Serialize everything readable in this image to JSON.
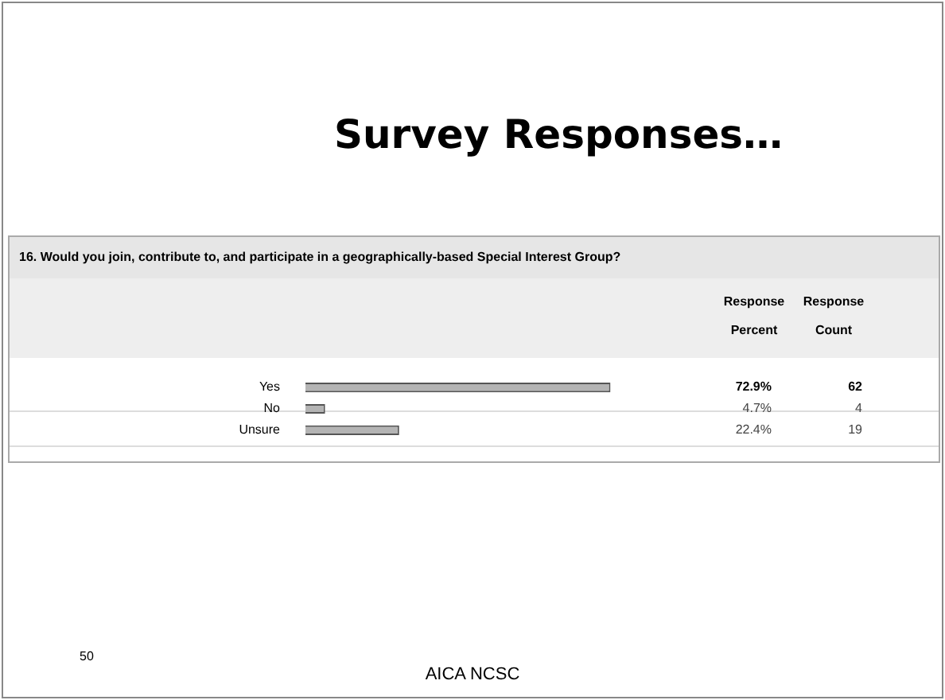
{
  "chart_data": {
    "type": "bar",
    "orientation": "horizontal",
    "title": "Survey Responses…",
    "subtitle": "16. Would you join, contribute to, and participate in a geographically-based Special Interest Group?",
    "categories": [
      "Yes",
      "No",
      "Unsure"
    ],
    "values": [
      72.9,
      4.7,
      22.4
    ],
    "value_labels": [
      "72.9%",
      "4.7%",
      "22.4%"
    ],
    "color": "#b4b4b4",
    "legend": false,
    "annotations": [
      "Response Percent",
      "Response Count",
      "62",
      "4",
      "19",
      "50",
      "AICA NCSC"
    ]
  }
}
